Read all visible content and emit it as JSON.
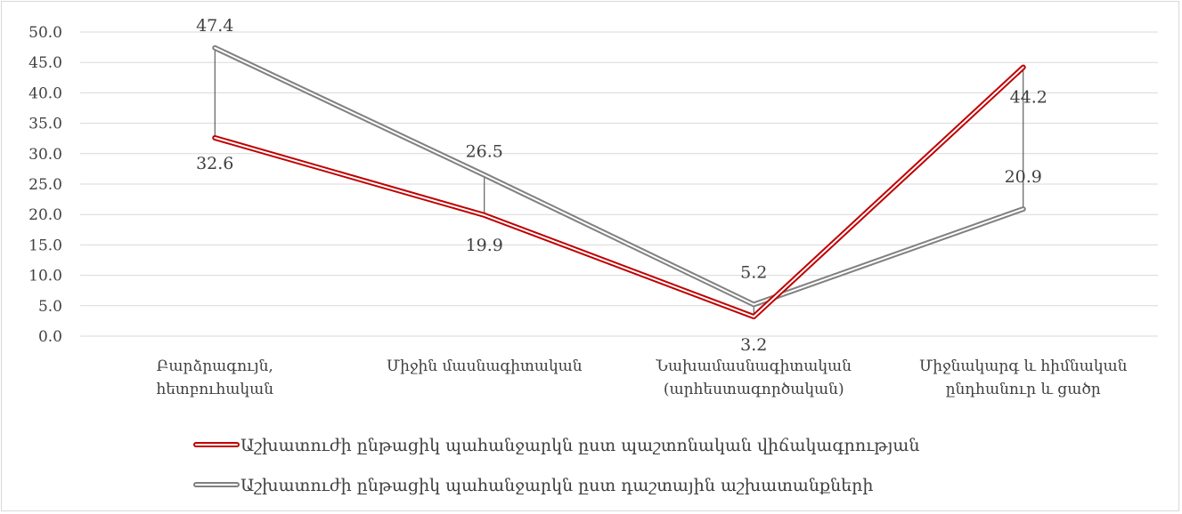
{
  "chart_data": {
    "type": "line",
    "categories": [
      [
        "Բարձրագույն,",
        "հետբուհական"
      ],
      [
        "Միջին մասնագիտական"
      ],
      [
        "Նախամասնագիտական",
        "(արհեստագործական)"
      ],
      [
        "Միջնակարգ և հիմնական",
        "ընդհանուր և ցածր"
      ]
    ],
    "y_ticks": [
      "0.0",
      "5.0",
      "10.0",
      "15.0",
      "20.0",
      "25.0",
      "30.0",
      "35.0",
      "40.0",
      "45.0",
      "50.0"
    ],
    "ylim": [
      0,
      50
    ],
    "grid": true,
    "legend_position": "bottom",
    "high_low_lines": true,
    "series": [
      {
        "name": "Աշխատուժի ընթացիկ պահանջարկն ըստ պաշտոնական վիճակագրության",
        "values": [
          32.6,
          19.9,
          3.2,
          44.2
        ],
        "labels": [
          "32.6",
          "19.9",
          "3.2",
          "44.2"
        ],
        "color": "#c00000",
        "style": "double"
      },
      {
        "name": "Աշխատուժի ընթացիկ պահանջարկն ըստ դաշտային աշխատանքների",
        "values": [
          47.4,
          26.5,
          5.2,
          20.9
        ],
        "labels": [
          "47.4",
          "26.5",
          "5.2",
          "20.9"
        ],
        "color": "#808080",
        "style": "double"
      }
    ]
  }
}
